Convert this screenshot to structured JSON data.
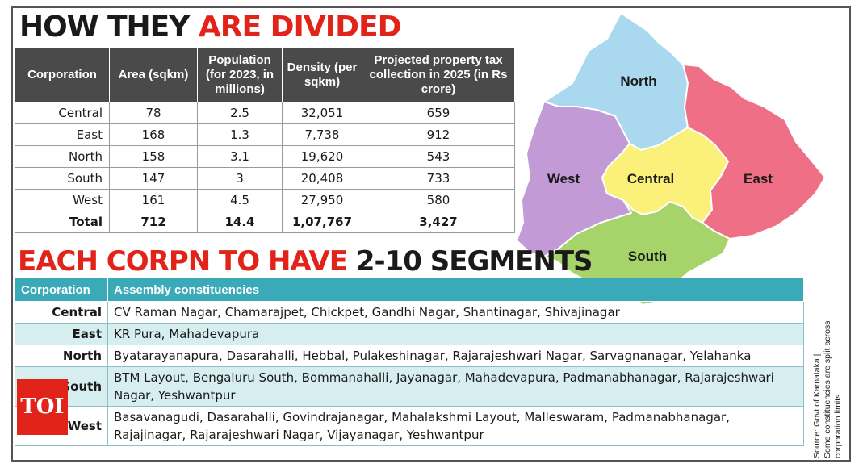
{
  "title": {
    "part1": "HOW THEY",
    "part2": "ARE DIVIDED"
  },
  "stats": {
    "headers": [
      "Corporation",
      "Area (sqkm)",
      "Population (for 2023, in millions)",
      "Density (per sqkm)",
      "Projected property tax collection in 2025 (in Rs crore)"
    ],
    "rows": [
      [
        "Central",
        "78",
        "2.5",
        "32,051",
        "659"
      ],
      [
        "East",
        "168",
        "1.3",
        "7,738",
        "912"
      ],
      [
        "North",
        "158",
        "3.1",
        "19,620",
        "543"
      ],
      [
        "South",
        "147",
        "3",
        "20,408",
        "733"
      ],
      [
        "West",
        "161",
        "4.5",
        "27,950",
        "580"
      ]
    ],
    "total": [
      "Total",
      "712",
      "14.4",
      "1,07,767",
      "3,427"
    ]
  },
  "title2": {
    "part1": "EACH CORPN TO HAVE",
    "part2": "2-10 SEGMENTS"
  },
  "segments": {
    "headers": [
      "Corporation",
      "Assembly constituencies"
    ],
    "rows": [
      [
        "Central",
        "CV Raman Nagar, Chamarajpet, Chickpet, Gandhi Nagar, Shantinagar, Shivajinagar"
      ],
      [
        "East",
        "KR Pura, Mahadevapura"
      ],
      [
        "North",
        "Byatarayanapura, Dasarahalli, Hebbal, Pulakeshinagar, Rajarajeshwari Nagar, Sarvagnanagar, Yelahanka"
      ],
      [
        "South",
        "BTM Layout, Bengaluru South, Bommanahalli, Jayanagar, Mahadevapura, Padmanabhanagar, Rajarajeshwari Nagar, Yeshwantpur"
      ],
      [
        "West",
        "Basavanagudi, Dasarahalli, Govindrajanagar, Mahalakshmi Layout, Malleswaram, Padmanabhanagar, Rajajinagar, Rajarajeshwari Nagar, Vijayanagar, Yeshwantpur"
      ]
    ]
  },
  "map": {
    "labels": {
      "north": "North",
      "west": "West",
      "central": "Central",
      "east": "East",
      "south": "South"
    },
    "colors": {
      "north": "#a9d8ef",
      "west": "#c19ad6",
      "central": "#fbf07a",
      "east": "#ef6f86",
      "south": "#a6d46a"
    }
  },
  "source": {
    "line1": "Source: Govt of Karnataka |",
    "line2": "Some constituencies are split across corporation limits"
  },
  "logo": "TOI",
  "colors": {
    "accent": "#e2231a",
    "teal": "#3aa9b8",
    "header_dark": "#4a4a4a"
  }
}
